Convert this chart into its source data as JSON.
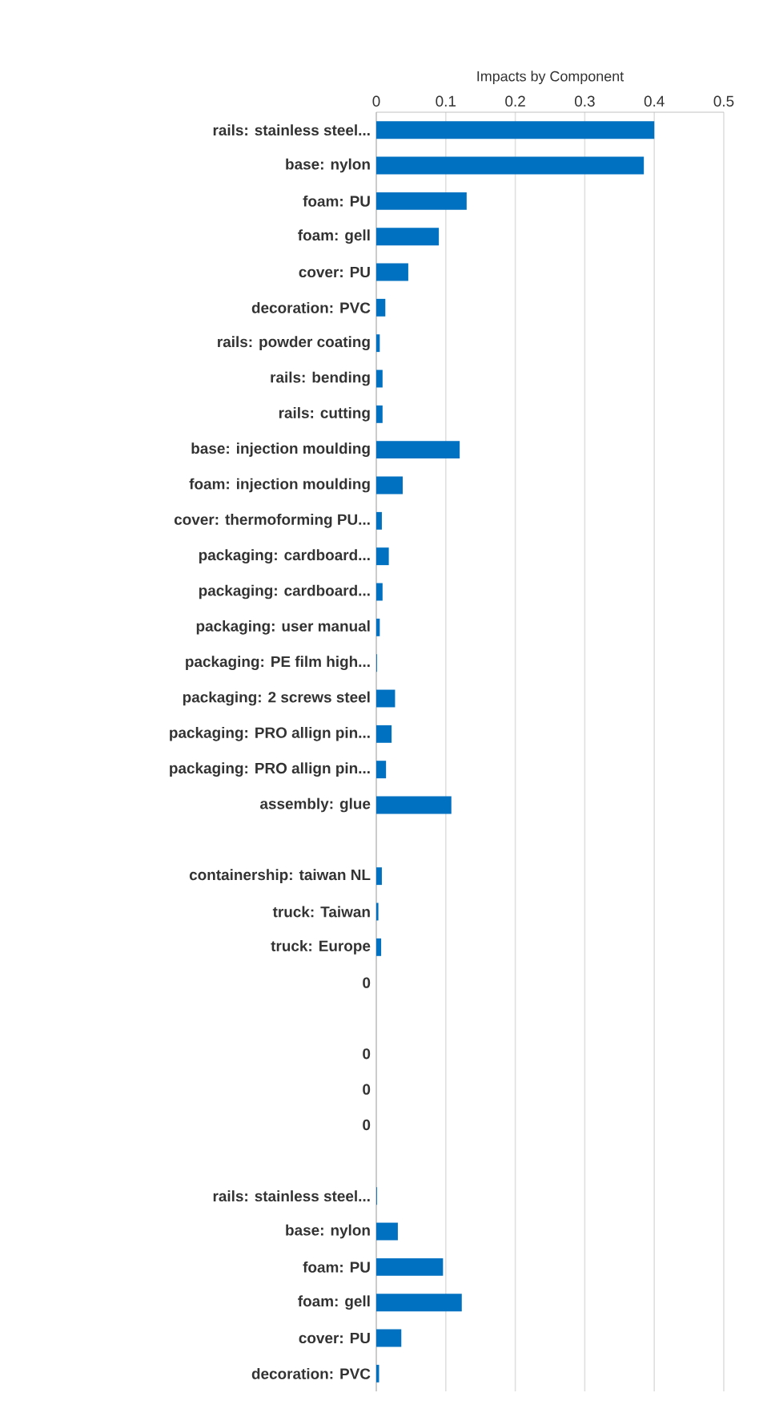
{
  "chart_data": {
    "type": "bar",
    "orientation": "horizontal",
    "title": "Impacts by Component",
    "categories": [
      "rails: stainless steel...",
      "base: nylon",
      "foam: PU",
      "foam: gell",
      "cover: PU",
      "decoration: PVC",
      "rails: powder coating",
      "rails: bending",
      "rails: cutting",
      "base: injection moulding",
      "foam: injection moulding",
      "cover: thermoforming PU...",
      "packaging: cardboard...",
      "packaging: cardboard...",
      "packaging: user manual",
      "packaging: PE film high...",
      "packaging: 2 screws steel",
      "packaging: PRO allign pin...",
      "packaging: PRO allign pin...",
      "assembly: glue",
      null,
      "containership: taiwan NL",
      "truck: Taiwan",
      "truck: Europe",
      "0",
      null,
      "0",
      "0",
      "0",
      null,
      "rails: stainless steel...",
      "base: nylon",
      "foam: PU",
      "foam: gell",
      "cover: PU",
      "decoration: PVC"
    ],
    "values": [
      0.4,
      0.385,
      0.13,
      0.09,
      0.046,
      0.013,
      0.005,
      0.009,
      0.009,
      0.12,
      0.038,
      0.008,
      0.018,
      0.009,
      0.005,
      0.001,
      0.027,
      0.022,
      0.014,
      0.108,
      null,
      0.008,
      0.003,
      0.007,
      0,
      null,
      0,
      0,
      0,
      null,
      0.001,
      0.031,
      0.096,
      0.123,
      0.036,
      0.004
    ],
    "color": "#0070c0",
    "xlim": [
      0,
      0.5
    ],
    "xticks": [
      0,
      0.1,
      0.2,
      0.3,
      0.4,
      0.5
    ],
    "grid": "x"
  }
}
